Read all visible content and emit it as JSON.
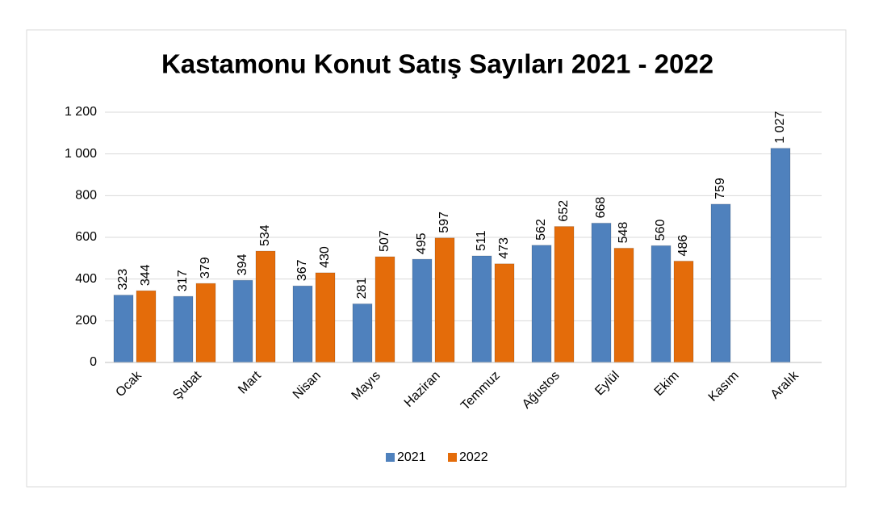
{
  "chart_data": {
    "type": "bar",
    "title": "Kastamonu Konut Satış Sayıları 2021 - 2022",
    "categories": [
      "Ocak",
      "Şubat",
      "Mart",
      "Nisan",
      "Mayıs",
      "Haziran",
      "Temmuz",
      "Ağustos",
      "Eylül",
      "Ekim",
      "Kasım",
      "Aralık"
    ],
    "series": [
      {
        "name": "2021",
        "color": "#4f81bd",
        "values": [
          323,
          317,
          394,
          367,
          281,
          495,
          511,
          562,
          668,
          560,
          759,
          1027
        ],
        "value_labels": [
          "323",
          "317",
          "394",
          "367",
          "281",
          "495",
          "511",
          "562",
          "668",
          "560",
          "759",
          "1 027"
        ]
      },
      {
        "name": "2022",
        "color": "#e46c0a",
        "values": [
          344,
          379,
          534,
          430,
          507,
          597,
          473,
          652,
          548,
          486,
          null,
          null
        ]
      }
    ],
    "ylim": [
      0,
      1200
    ],
    "yticks": [
      0,
      200,
      400,
      600,
      800,
      {
        "value": 1000,
        "label": "1 000"
      },
      {
        "value": 1200,
        "label": "1 200"
      }
    ],
    "grid": true,
    "legend": "bottom"
  }
}
